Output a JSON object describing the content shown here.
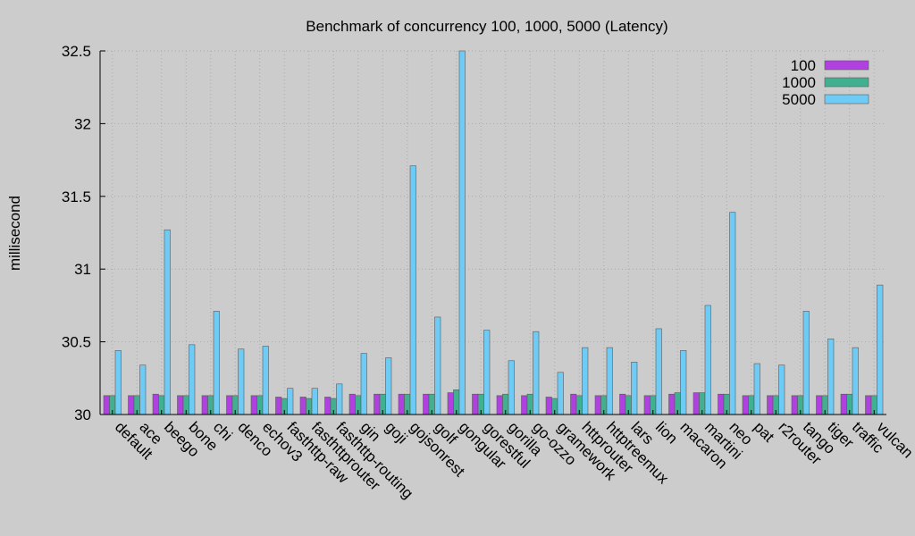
{
  "colors": {
    "background": "#cccccc",
    "series_100": "#b040e0",
    "series_1000": "#40b090",
    "series_5000": "#6ecbf5",
    "outline": "#5a5a5a"
  },
  "chart_data": {
    "type": "bar",
    "title": "Benchmark of concurrency 100, 1000, 5000 (Latency)",
    "xlabel": "",
    "ylabel": "millisecond",
    "ylim": [
      30,
      32.5
    ],
    "yticks": [
      "30",
      "30.5",
      "31",
      "31.5",
      "32",
      "32.5"
    ],
    "grid": true,
    "legend_position": "top-right",
    "categories": [
      "default",
      "ace",
      "beego",
      "bone",
      "chi",
      "denco",
      "echov3",
      "fasthttp-raw",
      "fasthttprouter",
      "fasthttp-routing",
      "gin",
      "goji",
      "gojsonrest",
      "golf",
      "gongular",
      "gorestful",
      "gorilla",
      "go-ozzo",
      "gramework",
      "httprouter",
      "httptreemux",
      "lars",
      "lion",
      "macaron",
      "martini",
      "neo",
      "pat",
      "r2router",
      "tango",
      "tiger",
      "traffic",
      "vulcan"
    ],
    "series": [
      {
        "name": "100",
        "values": [
          30.13,
          30.13,
          30.14,
          30.13,
          30.13,
          30.13,
          30.13,
          30.12,
          30.12,
          30.12,
          30.14,
          30.14,
          30.14,
          30.14,
          30.15,
          30.14,
          30.13,
          30.13,
          30.12,
          30.14,
          30.13,
          30.14,
          30.13,
          30.14,
          30.15,
          30.14,
          30.13,
          30.13,
          30.13,
          30.13,
          30.14,
          30.13
        ]
      },
      {
        "name": "1000",
        "values": [
          30.13,
          30.13,
          30.13,
          30.13,
          30.13,
          30.13,
          30.13,
          30.11,
          30.11,
          30.11,
          30.13,
          30.14,
          30.14,
          30.14,
          30.17,
          30.14,
          30.14,
          30.14,
          30.11,
          30.13,
          30.13,
          30.13,
          30.13,
          30.15,
          30.15,
          30.14,
          30.13,
          30.13,
          30.13,
          30.13,
          30.14,
          30.13
        ]
      },
      {
        "name": "5000",
        "values": [
          30.44,
          30.34,
          31.27,
          30.48,
          30.71,
          30.45,
          30.47,
          30.18,
          30.18,
          30.21,
          30.42,
          30.39,
          31.71,
          30.67,
          32.5,
          30.58,
          30.37,
          30.57,
          30.29,
          30.46,
          30.46,
          30.36,
          30.59,
          30.44,
          30.75,
          31.39,
          30.35,
          30.34,
          30.71,
          30.52,
          30.46,
          30.89
        ]
      }
    ]
  }
}
